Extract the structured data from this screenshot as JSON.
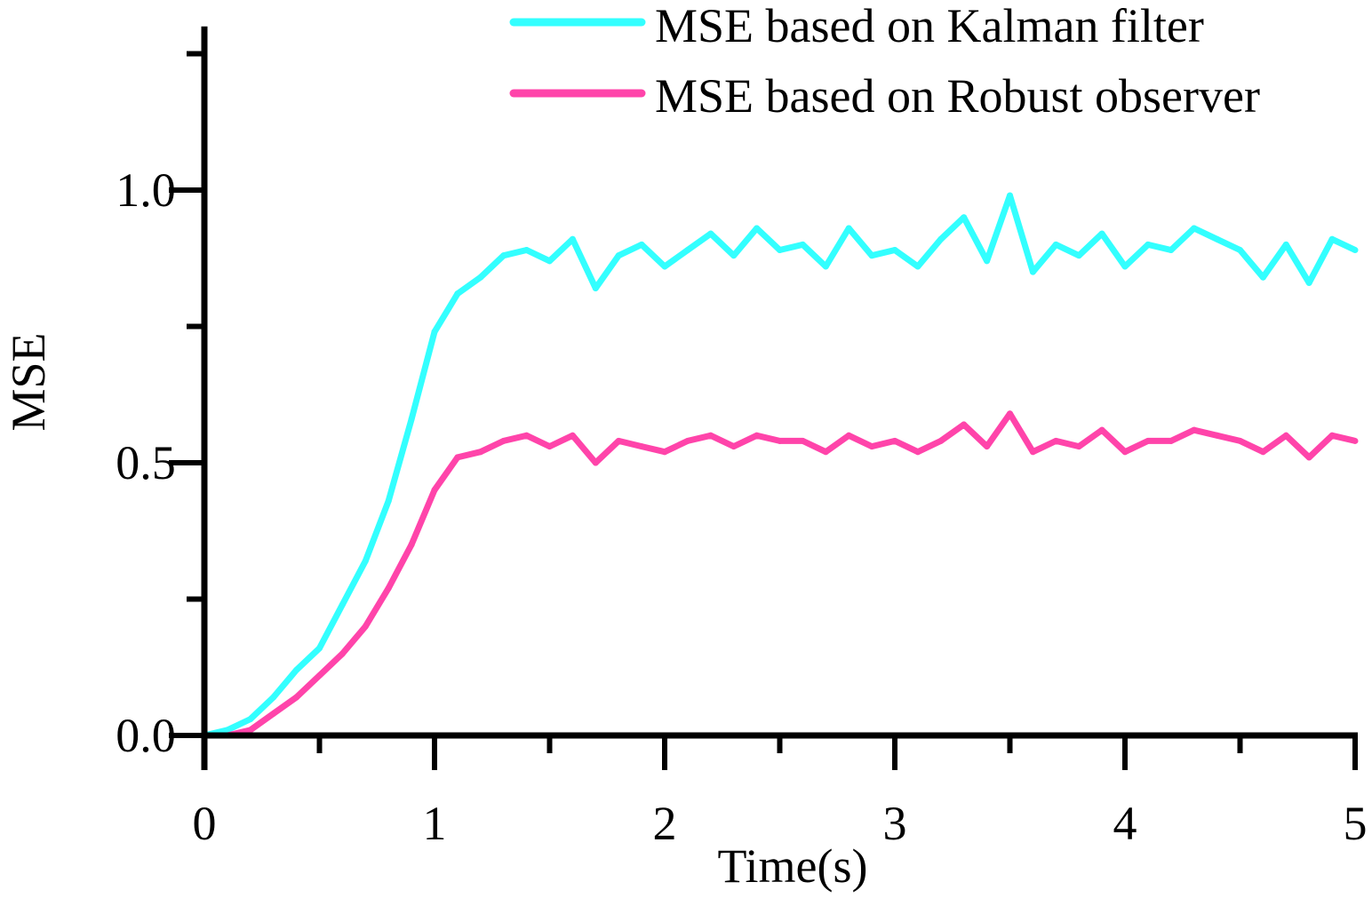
{
  "chart_data": {
    "type": "line",
    "title": "",
    "xlabel": "Time(s)",
    "ylabel": "MSE",
    "xlim": [
      0,
      5
    ],
    "ylim": [
      0,
      1.3
    ],
    "xticks": [
      0,
      1,
      2,
      3,
      4,
      5
    ],
    "xtick_labels": [
      "0",
      "1",
      "2",
      "3",
      "4",
      "5"
    ],
    "yticks": [
      0,
      0.5,
      1.0
    ],
    "ytick_labels": [
      "0.0",
      "0.5",
      "1.0"
    ],
    "grid": false,
    "legend_position": "top-right",
    "x": [
      0,
      0.1,
      0.2,
      0.3,
      0.4,
      0.5,
      0.6,
      0.7,
      0.8,
      0.9,
      1.0,
      1.1,
      1.2,
      1.3,
      1.4,
      1.5,
      1.6,
      1.7,
      1.8,
      1.9,
      2.0,
      2.1,
      2.2,
      2.3,
      2.4,
      2.5,
      2.6,
      2.7,
      2.8,
      2.9,
      3.0,
      3.1,
      3.2,
      3.3,
      3.4,
      3.5,
      3.6,
      3.7,
      3.8,
      3.9,
      4.0,
      4.1,
      4.2,
      4.3,
      4.4,
      4.5,
      4.6,
      4.7,
      4.8,
      4.9,
      5.0
    ],
    "series": [
      {
        "name": "MSE based on Kalman filter",
        "color": "#33FFFF",
        "values": [
          0,
          0.01,
          0.03,
          0.07,
          0.12,
          0.16,
          0.24,
          0.32,
          0.43,
          0.58,
          0.74,
          0.81,
          0.84,
          0.88,
          0.89,
          0.87,
          0.91,
          0.82,
          0.88,
          0.9,
          0.86,
          0.89,
          0.92,
          0.88,
          0.93,
          0.89,
          0.9,
          0.86,
          0.93,
          0.88,
          0.89,
          0.86,
          0.91,
          0.95,
          0.87,
          0.99,
          0.85,
          0.9,
          0.88,
          0.92,
          0.86,
          0.9,
          0.89,
          0.93,
          0.91,
          0.89,
          0.84,
          0.9,
          0.83,
          0.91,
          0.89
        ]
      },
      {
        "name": "MSE based on Robust observer",
        "color": "#FF44AA",
        "values": [
          0,
          0,
          0.01,
          0.04,
          0.07,
          0.11,
          0.15,
          0.2,
          0.27,
          0.35,
          0.45,
          0.51,
          0.52,
          0.54,
          0.55,
          0.53,
          0.55,
          0.5,
          0.54,
          0.53,
          0.52,
          0.54,
          0.55,
          0.53,
          0.55,
          0.54,
          0.54,
          0.52,
          0.55,
          0.53,
          0.54,
          0.52,
          0.54,
          0.57,
          0.53,
          0.59,
          0.52,
          0.54,
          0.53,
          0.56,
          0.52,
          0.54,
          0.54,
          0.56,
          0.55,
          0.54,
          0.52,
          0.55,
          0.51,
          0.55,
          0.54
        ]
      }
    ]
  }
}
